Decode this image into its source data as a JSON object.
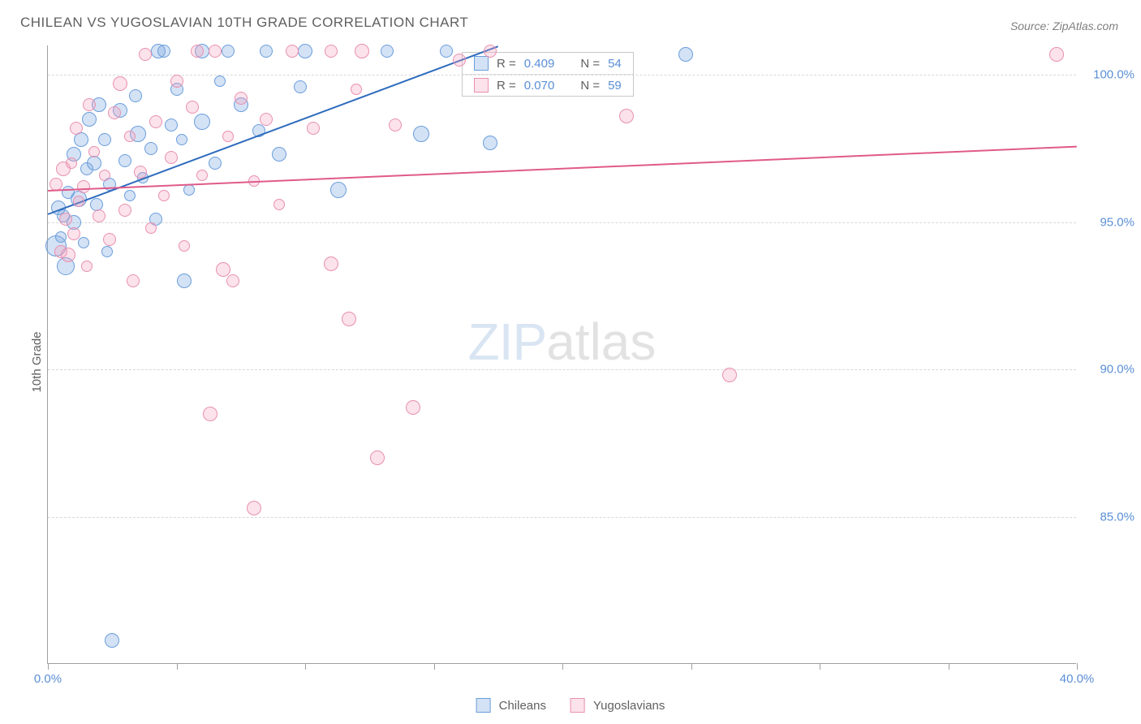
{
  "title": "CHILEAN VS YUGOSLAVIAN 10TH GRADE CORRELATION CHART",
  "source": "Source: ZipAtlas.com",
  "ylabel": "10th Grade",
  "watermark": {
    "zip": "ZIP",
    "atlas": "atlas"
  },
  "chart": {
    "type": "scatter",
    "xlim": [
      0,
      40
    ],
    "ylim": [
      80,
      101
    ],
    "x_ticks": [
      0,
      5,
      10,
      15,
      20,
      25,
      30,
      35,
      40
    ],
    "x_tick_labels": {
      "0": "0.0%",
      "40": "40.0%"
    },
    "y_gridlines": [
      85,
      90,
      95,
      100
    ],
    "y_tick_labels": {
      "85": "85.0%",
      "90": "90.0%",
      "95": "95.0%",
      "100": "100.0%"
    },
    "background_color": "#ffffff",
    "grid_color": "#d8d8d8",
    "axis_label_color": "#5b8fd6",
    "series": [
      {
        "name": "Chileans",
        "fill": "rgba(120,165,225,0.32)",
        "stroke": "#6a9edc",
        "trend_color": "#2e6bbd",
        "r_value": "0.409",
        "n_value": "54",
        "trendline": {
          "x1": 0,
          "y1": 95.3,
          "x2": 17.5,
          "y2": 101
        },
        "points": [
          {
            "x": 0.3,
            "y": 94.2,
            "r": 13
          },
          {
            "x": 0.4,
            "y": 95.5,
            "r": 9
          },
          {
            "x": 0.5,
            "y": 94.5,
            "r": 7
          },
          {
            "x": 0.6,
            "y": 95.2,
            "r": 8
          },
          {
            "x": 0.7,
            "y": 93.5,
            "r": 11
          },
          {
            "x": 0.8,
            "y": 96.0,
            "r": 8
          },
          {
            "x": 1.0,
            "y": 95.0,
            "r": 9
          },
          {
            "x": 1.0,
            "y": 97.3,
            "r": 9
          },
          {
            "x": 1.2,
            "y": 95.8,
            "r": 10
          },
          {
            "x": 1.3,
            "y": 97.8,
            "r": 9
          },
          {
            "x": 1.4,
            "y": 94.3,
            "r": 7
          },
          {
            "x": 1.5,
            "y": 96.8,
            "r": 8
          },
          {
            "x": 1.6,
            "y": 98.5,
            "r": 9
          },
          {
            "x": 1.8,
            "y": 97.0,
            "r": 9
          },
          {
            "x": 1.9,
            "y": 95.6,
            "r": 8
          },
          {
            "x": 2.0,
            "y": 99.0,
            "r": 9
          },
          {
            "x": 2.2,
            "y": 97.8,
            "r": 8
          },
          {
            "x": 2.3,
            "y": 94.0,
            "r": 7
          },
          {
            "x": 2.4,
            "y": 96.3,
            "r": 8
          },
          {
            "x": 2.5,
            "y": 80.8,
            "r": 9
          },
          {
            "x": 2.8,
            "y": 98.8,
            "r": 9
          },
          {
            "x": 3.0,
            "y": 97.1,
            "r": 8
          },
          {
            "x": 3.2,
            "y": 95.9,
            "r": 7
          },
          {
            "x": 3.4,
            "y": 99.3,
            "r": 8
          },
          {
            "x": 3.5,
            "y": 98.0,
            "r": 10
          },
          {
            "x": 3.7,
            "y": 96.5,
            "r": 7
          },
          {
            "x": 4.0,
            "y": 97.5,
            "r": 8
          },
          {
            "x": 4.2,
            "y": 95.1,
            "r": 8
          },
          {
            "x": 4.3,
            "y": 100.8,
            "r": 9
          },
          {
            "x": 4.5,
            "y": 100.8,
            "r": 8
          },
          {
            "x": 4.8,
            "y": 98.3,
            "r": 8
          },
          {
            "x": 5.0,
            "y": 99.5,
            "r": 8
          },
          {
            "x": 5.2,
            "y": 97.8,
            "r": 7
          },
          {
            "x": 5.3,
            "y": 93.0,
            "r": 9
          },
          {
            "x": 5.5,
            "y": 96.1,
            "r": 7
          },
          {
            "x": 6.0,
            "y": 100.8,
            "r": 9
          },
          {
            "x": 6.0,
            "y": 98.4,
            "r": 10
          },
          {
            "x": 6.5,
            "y": 97.0,
            "r": 8
          },
          {
            "x": 6.7,
            "y": 99.8,
            "r": 7
          },
          {
            "x": 7.0,
            "y": 100.8,
            "r": 8
          },
          {
            "x": 7.5,
            "y": 99.0,
            "r": 9
          },
          {
            "x": 8.2,
            "y": 98.1,
            "r": 8
          },
          {
            "x": 8.5,
            "y": 100.8,
            "r": 8
          },
          {
            "x": 9.0,
            "y": 97.3,
            "r": 9
          },
          {
            "x": 9.8,
            "y": 99.6,
            "r": 8
          },
          {
            "x": 10.0,
            "y": 100.8,
            "r": 9
          },
          {
            "x": 11.3,
            "y": 96.1,
            "r": 10
          },
          {
            "x": 13.2,
            "y": 100.8,
            "r": 8
          },
          {
            "x": 14.5,
            "y": 98.0,
            "r": 10
          },
          {
            "x": 15.5,
            "y": 100.8,
            "r": 8
          },
          {
            "x": 17.2,
            "y": 97.7,
            "r": 9
          },
          {
            "x": 24.8,
            "y": 100.7,
            "r": 9
          }
        ]
      },
      {
        "name": "Yugoslavians",
        "fill": "rgba(245,160,190,0.30)",
        "stroke": "#e890b0",
        "trend_color": "#e05a8a",
        "r_value": "0.070",
        "n_value": "59",
        "trendline": {
          "x1": 0,
          "y1": 96.1,
          "x2": 40,
          "y2": 97.6
        },
        "points": [
          {
            "x": 0.3,
            "y": 96.3,
            "r": 8
          },
          {
            "x": 0.5,
            "y": 94.0,
            "r": 8
          },
          {
            "x": 0.6,
            "y": 96.8,
            "r": 9
          },
          {
            "x": 0.7,
            "y": 95.1,
            "r": 8
          },
          {
            "x": 0.8,
            "y": 93.9,
            "r": 9
          },
          {
            "x": 0.9,
            "y": 97.0,
            "r": 7
          },
          {
            "x": 1.0,
            "y": 94.6,
            "r": 8
          },
          {
            "x": 1.1,
            "y": 98.2,
            "r": 8
          },
          {
            "x": 1.2,
            "y": 95.7,
            "r": 7
          },
          {
            "x": 1.4,
            "y": 96.2,
            "r": 8
          },
          {
            "x": 1.5,
            "y": 93.5,
            "r": 7
          },
          {
            "x": 1.6,
            "y": 99.0,
            "r": 8
          },
          {
            "x": 1.8,
            "y": 97.4,
            "r": 7
          },
          {
            "x": 2.0,
            "y": 95.2,
            "r": 8
          },
          {
            "x": 2.2,
            "y": 96.6,
            "r": 7
          },
          {
            "x": 2.4,
            "y": 94.4,
            "r": 8
          },
          {
            "x": 2.6,
            "y": 98.7,
            "r": 8
          },
          {
            "x": 2.8,
            "y": 99.7,
            "r": 9
          },
          {
            "x": 3.0,
            "y": 95.4,
            "r": 8
          },
          {
            "x": 3.2,
            "y": 97.9,
            "r": 7
          },
          {
            "x": 3.3,
            "y": 93.0,
            "r": 8
          },
          {
            "x": 3.6,
            "y": 96.7,
            "r": 8
          },
          {
            "x": 3.8,
            "y": 100.7,
            "r": 8
          },
          {
            "x": 4.0,
            "y": 94.8,
            "r": 7
          },
          {
            "x": 4.2,
            "y": 98.4,
            "r": 8
          },
          {
            "x": 4.5,
            "y": 95.9,
            "r": 7
          },
          {
            "x": 4.8,
            "y": 97.2,
            "r": 8
          },
          {
            "x": 5.0,
            "y": 99.8,
            "r": 8
          },
          {
            "x": 5.3,
            "y": 94.2,
            "r": 7
          },
          {
            "x": 5.6,
            "y": 98.9,
            "r": 8
          },
          {
            "x": 5.8,
            "y": 100.8,
            "r": 8
          },
          {
            "x": 6.0,
            "y": 96.6,
            "r": 7
          },
          {
            "x": 6.3,
            "y": 88.5,
            "r": 9
          },
          {
            "x": 6.5,
            "y": 100.8,
            "r": 8
          },
          {
            "x": 6.8,
            "y": 93.4,
            "r": 9
          },
          {
            "x": 7.0,
            "y": 97.9,
            "r": 7
          },
          {
            "x": 7.2,
            "y": 93.0,
            "r": 8
          },
          {
            "x": 7.5,
            "y": 99.2,
            "r": 8
          },
          {
            "x": 8.0,
            "y": 85.3,
            "r": 9
          },
          {
            "x": 8.0,
            "y": 96.4,
            "r": 7
          },
          {
            "x": 8.5,
            "y": 98.5,
            "r": 8
          },
          {
            "x": 9.0,
            "y": 95.6,
            "r": 7
          },
          {
            "x": 9.5,
            "y": 100.8,
            "r": 8
          },
          {
            "x": 10.3,
            "y": 98.2,
            "r": 8
          },
          {
            "x": 11.0,
            "y": 93.6,
            "r": 9
          },
          {
            "x": 11.0,
            "y": 100.8,
            "r": 8
          },
          {
            "x": 11.7,
            "y": 91.7,
            "r": 9
          },
          {
            "x": 12.0,
            "y": 99.5,
            "r": 7
          },
          {
            "x": 12.2,
            "y": 100.8,
            "r": 9
          },
          {
            "x": 12.8,
            "y": 87.0,
            "r": 9
          },
          {
            "x": 13.5,
            "y": 98.3,
            "r": 8
          },
          {
            "x": 14.2,
            "y": 88.7,
            "r": 9
          },
          {
            "x": 16.0,
            "y": 100.5,
            "r": 8
          },
          {
            "x": 17.2,
            "y": 100.8,
            "r": 8
          },
          {
            "x": 22.5,
            "y": 98.6,
            "r": 9
          },
          {
            "x": 26.5,
            "y": 89.8,
            "r": 9
          },
          {
            "x": 39.2,
            "y": 100.7,
            "r": 9
          }
        ]
      }
    ]
  },
  "legend": {
    "stats_rows": [
      {
        "series_idx": 0,
        "r_label": "R =",
        "n_label": "N ="
      },
      {
        "series_idx": 1,
        "r_label": "R =",
        "n_label": "N ="
      }
    ]
  }
}
